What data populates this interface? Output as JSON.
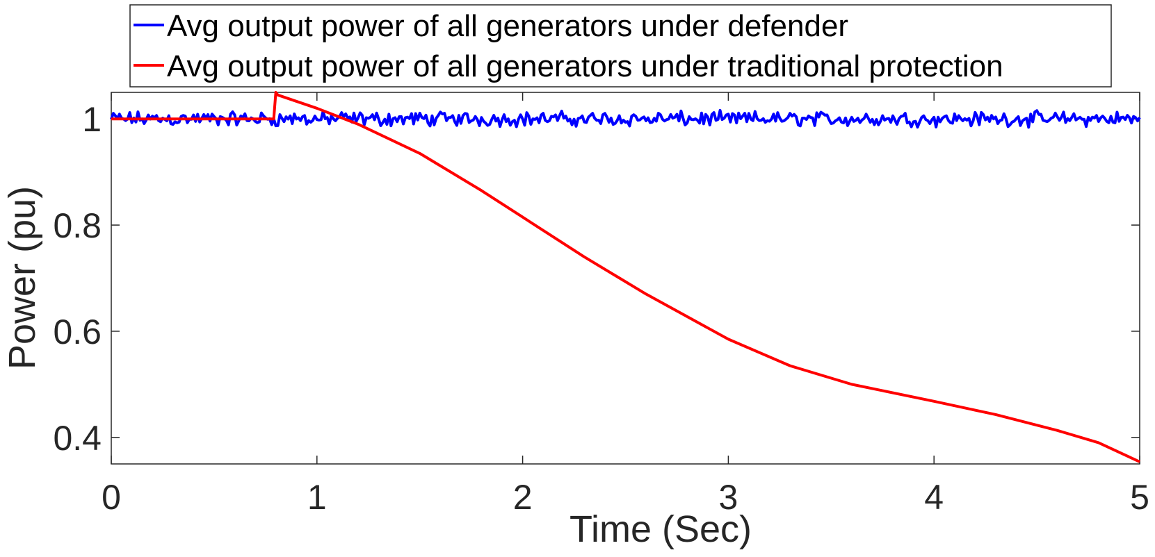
{
  "chart_data": {
    "type": "line",
    "title": "",
    "xlabel": "Time (Sec)",
    "ylabel": "Power (pu)",
    "xlim": [
      0,
      5
    ],
    "ylim": [
      0.35,
      1.05
    ],
    "xticks": [
      0,
      1,
      2,
      3,
      4,
      5
    ],
    "xtick_labels": [
      "0",
      "1",
      "2",
      "3",
      "4",
      "5"
    ],
    "yticks": [
      0.4,
      0.6,
      0.8,
      1.0
    ],
    "ytick_labels": [
      "0.4",
      "0.6",
      "0.8",
      "1"
    ],
    "grid": false,
    "legend_position": "top-center",
    "series": [
      {
        "name": "Avg output power of all generators under defender",
        "color": "#0000ff",
        "style": "noisy",
        "x": [
          0,
          5
        ],
        "mean": 1.0,
        "noise_amplitude": 0.012,
        "samples": 500
      },
      {
        "name": "Avg output power of all generators under traditional protection",
        "color": "#ff0000",
        "x": [
          0,
          0.79,
          0.8,
          0.81,
          1.0,
          1.2,
          1.5,
          1.8,
          2.0,
          2.3,
          2.6,
          3.0,
          3.3,
          3.6,
          4.0,
          4.3,
          4.6,
          4.8,
          5.0
        ],
        "y": [
          1.0,
          1.0,
          1.05,
          1.045,
          1.02,
          0.99,
          0.935,
          0.865,
          0.815,
          0.74,
          0.67,
          0.585,
          0.535,
          0.5,
          0.468,
          0.443,
          0.413,
          0.39,
          0.354
        ]
      }
    ]
  }
}
